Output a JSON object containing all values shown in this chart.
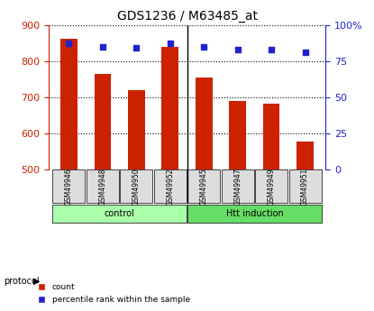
{
  "title": "GDS1236 / M63485_at",
  "samples": [
    "GSM49946",
    "GSM49948",
    "GSM49950",
    "GSM49952",
    "GSM49945",
    "GSM49947",
    "GSM49949",
    "GSM49951"
  ],
  "counts": [
    862,
    765,
    720,
    838,
    755,
    690,
    682,
    577
  ],
  "percentile_ranks": [
    87,
    85,
    84,
    87,
    85,
    83,
    83,
    81
  ],
  "groups": [
    {
      "label": "control",
      "start": 0,
      "end": 4,
      "color": "#aaffaa"
    },
    {
      "label": "Htt induction",
      "start": 4,
      "end": 8,
      "color": "#66dd66"
    }
  ],
  "ylim_left": [
    500,
    900
  ],
  "ylim_right": [
    0,
    100
  ],
  "yticks_left": [
    500,
    600,
    700,
    800,
    900
  ],
  "yticks_right": [
    0,
    25,
    50,
    75,
    100
  ],
  "bar_color": "#cc2200",
  "dot_color": "#2222cc",
  "bar_width": 0.5,
  "background_color": "#ffffff",
  "sample_bg_color": "#dddddd",
  "protocol_label": "protocol",
  "legend_items": [
    "count",
    "percentile rank within the sample"
  ]
}
